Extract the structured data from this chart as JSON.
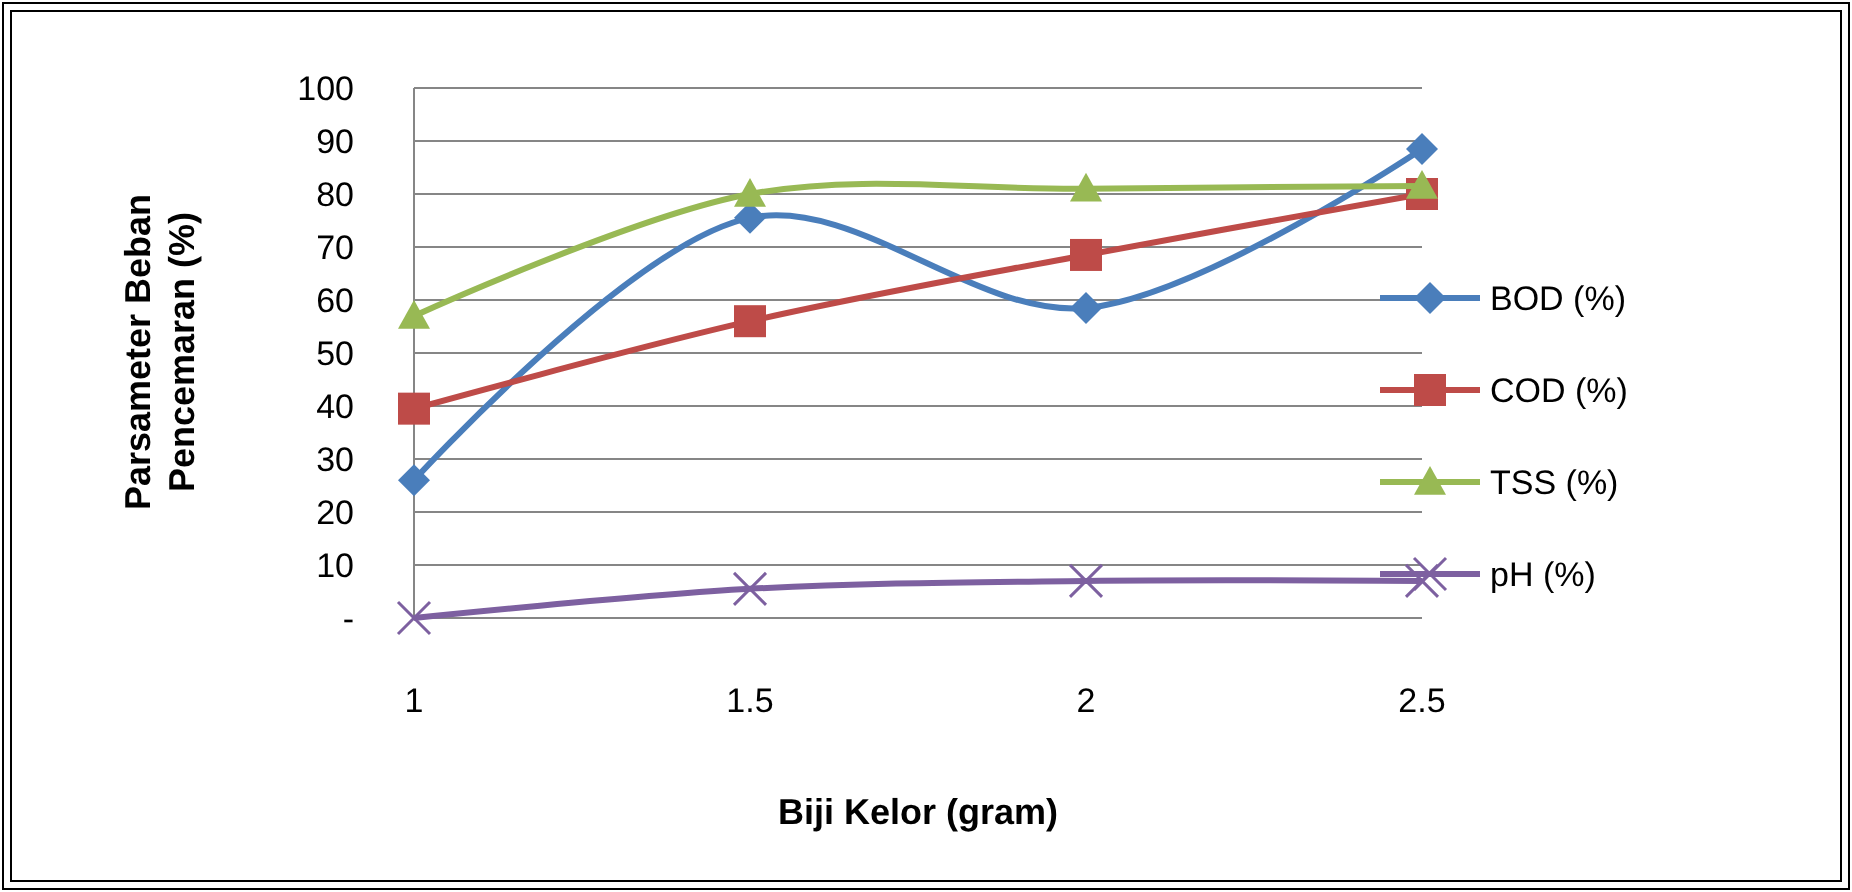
{
  "chart_data": {
    "type": "line",
    "xlabel": "Biji Kelor (gram)",
    "ylabel": "Parsameter Beban Pencemaran (%)",
    "x": [
      1,
      1.5,
      2,
      2.5
    ],
    "xlim": [
      1,
      2.5
    ],
    "xticks": [
      1,
      1.5,
      2,
      2.5
    ],
    "ylim": [
      0,
      100
    ],
    "yticks": [
      {
        "value": 0,
        "label": "-"
      },
      10,
      20,
      30,
      40,
      50,
      60,
      70,
      80,
      90,
      100
    ],
    "grid": "y",
    "legend": "right",
    "series": [
      {
        "name": "BOD (%)",
        "color": "#4a7ebb",
        "marker": "diamond",
        "values": [
          26,
          75.5,
          58.5,
          88.5
        ]
      },
      {
        "name": "COD (%)",
        "color": "#be4b48",
        "marker": "square",
        "values": [
          39.5,
          56,
          68.5,
          80
        ]
      },
      {
        "name": "TSS (%)",
        "color": "#98b954",
        "marker": "triangle",
        "values": [
          57,
          80,
          81,
          81.5
        ]
      },
      {
        "name": "pH (%)",
        "color": "#7d60a0",
        "marker": "cross",
        "values": [
          0,
          5.5,
          7,
          7
        ]
      }
    ]
  }
}
